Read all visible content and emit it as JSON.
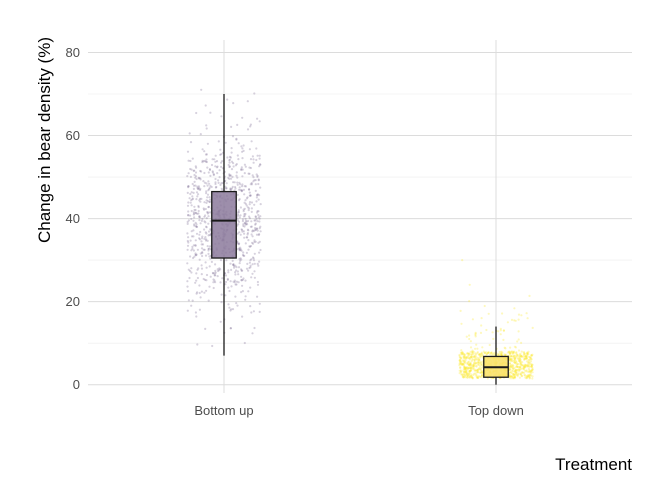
{
  "chart_data": {
    "type": "boxplot-with-jittered-points",
    "title": "",
    "xlabel": "Treatment",
    "ylabel": "Change in bear density (%)",
    "categories": [
      "Bottom up",
      "Top down"
    ],
    "ylim": [
      -2,
      83
    ],
    "y_ticks": [
      0,
      20,
      40,
      60,
      80
    ],
    "y_minor_ticks": [
      10,
      30,
      50,
      70
    ],
    "grid": true,
    "legend": "none",
    "series": [
      {
        "category": "Bottom up",
        "color": "#7b6a91",
        "box_fill": "#8c7a9c",
        "box": {
          "min": 7,
          "q1": 30.5,
          "median": 39.5,
          "q3": 46.5,
          "max": 70
        },
        "points": {
          "n": 900,
          "center": 39.5,
          "spread": 10.5,
          "min": 5,
          "max": 71
        }
      },
      {
        "category": "Top down",
        "color": "#fde725",
        "box_fill": "#f9e16a",
        "box": {
          "min": 0,
          "q1": 1.8,
          "median": 4.2,
          "q3": 6.8,
          "max": 14
        },
        "points": {
          "n": 900,
          "center": 4.5,
          "spread": 4,
          "min": 1.5,
          "max": 30
        }
      }
    ]
  }
}
